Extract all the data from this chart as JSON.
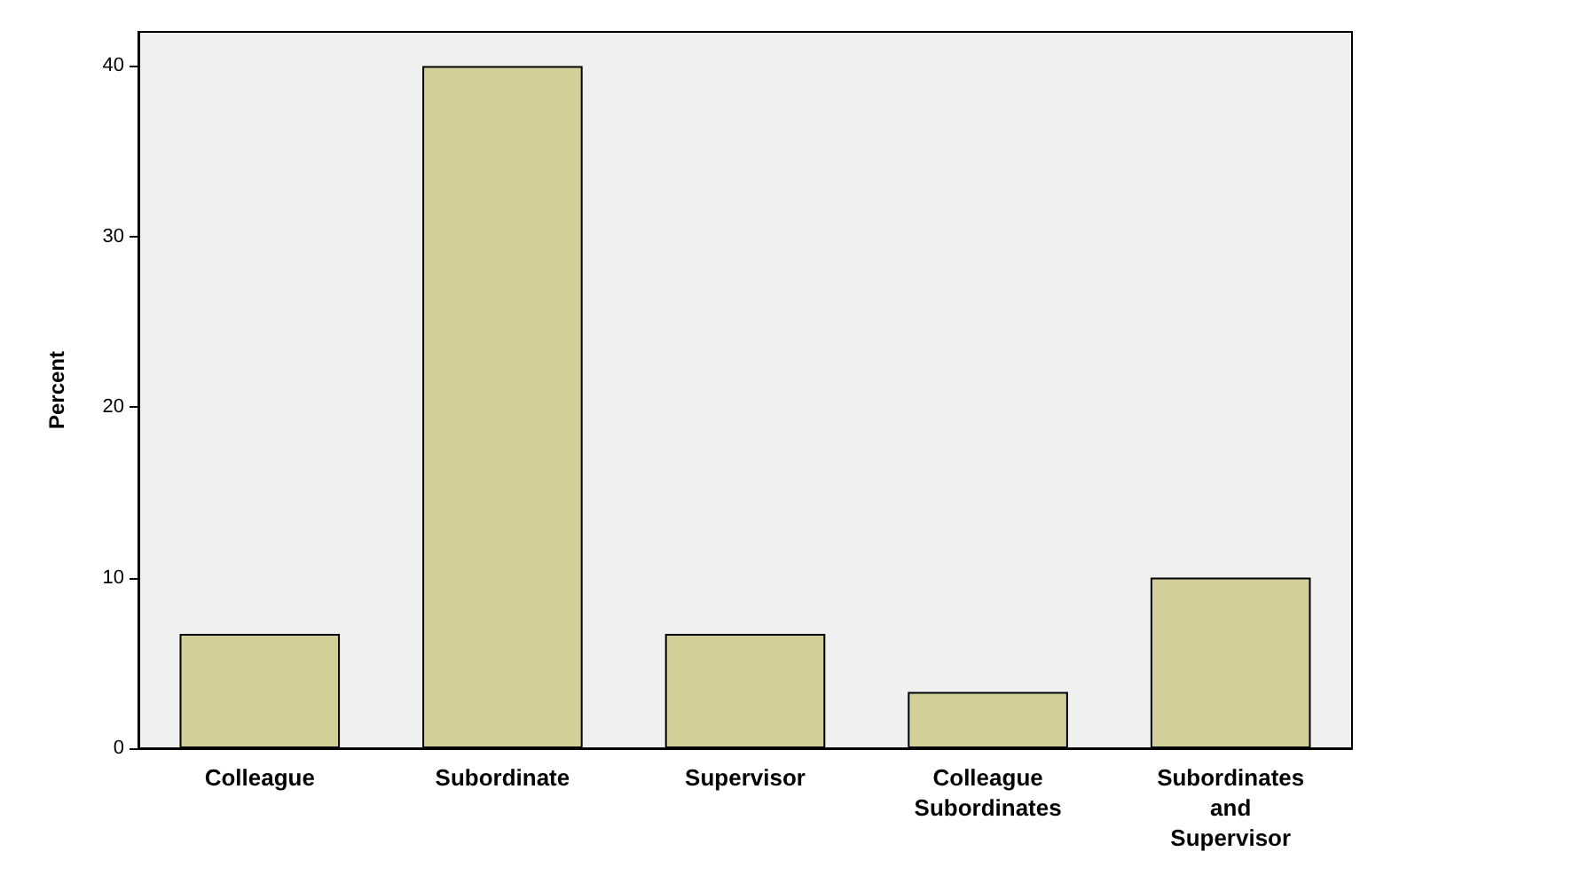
{
  "chart_data": {
    "type": "bar",
    "ylabel": "Percent",
    "categories": [
      "Colleague",
      "Subordinate",
      "Supervisor",
      "Colleague\nSubordinates",
      "Subordinates\nand\nSupervisor"
    ],
    "values": [
      6.7,
      40,
      6.7,
      3.3,
      10
    ],
    "color": "#d3cf98",
    "ylim": [
      0,
      42
    ],
    "yticks": [
      0,
      10,
      20,
      30,
      40
    ],
    "grid": false
  }
}
